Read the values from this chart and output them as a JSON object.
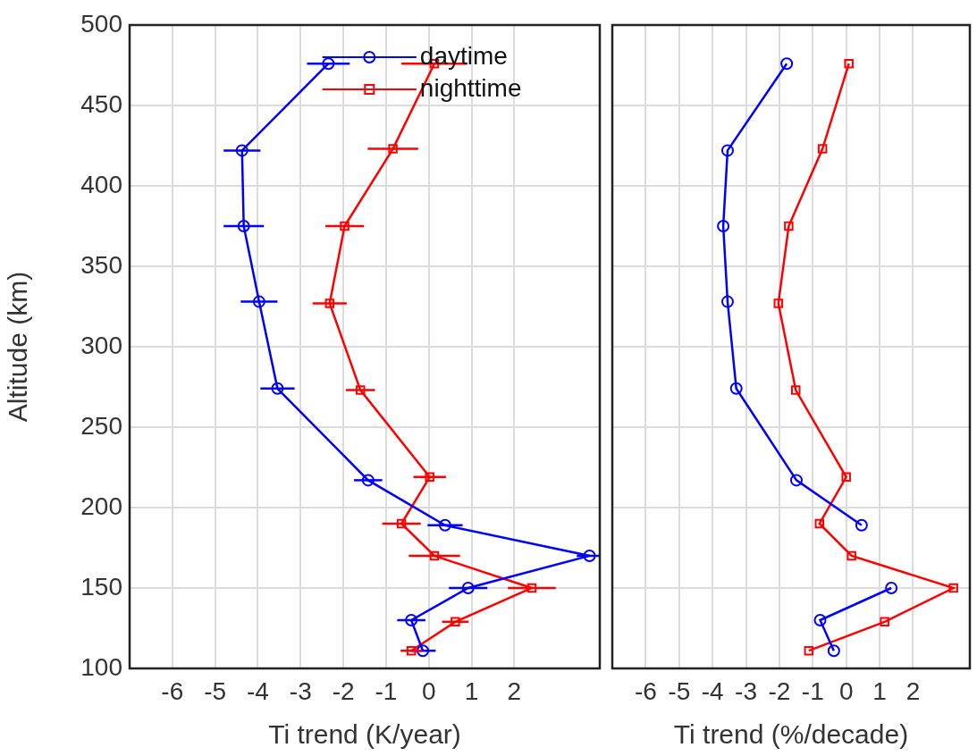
{
  "chart_data": [
    {
      "type": "line",
      "xlabel": "Ti trend (K/year)",
      "ylabel": "Altitude (km)",
      "xlim": [
        -7,
        4
      ],
      "xticks": [
        -6,
        -5,
        -4,
        -3,
        -2,
        -1,
        0,
        1,
        2
      ],
      "ylim": [
        100,
        500
      ],
      "yticks": [
        100,
        150,
        200,
        250,
        300,
        350,
        400,
        450,
        500
      ],
      "grid": true,
      "legend": "top right",
      "series": [
        {
          "name": "daytime",
          "color": "#0000ff",
          "marker": "circle",
          "x": [
            -2.35,
            -4.37,
            -4.33,
            -3.97,
            -3.54,
            -1.42,
            0.38,
            3.76,
            0.92,
            -0.41,
            -0.14
          ],
          "values": [
            476,
            422,
            375,
            328,
            274,
            217,
            189,
            170,
            150,
            130,
            111
          ],
          "xerrors": [
            0.5,
            0.43,
            0.47,
            0.43,
            0.4,
            0.33,
            0.41,
            0.3,
            0.45,
            0.33,
            0.3
          ]
        },
        {
          "name": "nighttime",
          "color": "#ff0000",
          "marker": "square",
          "x": [
            0.13,
            -0.84,
            -1.97,
            -2.32,
            -1.6,
            0.02,
            -0.64,
            0.13,
            2.41,
            0.62,
            -0.41
          ],
          "values": [
            476,
            423,
            375,
            327,
            273,
            219,
            190,
            170,
            150,
            129,
            111
          ],
          "xerrors": [
            0.77,
            0.59,
            0.45,
            0.4,
            0.34,
            0.38,
            0.45,
            0.6,
            0.56,
            0.31,
            0.25
          ]
        }
      ]
    },
    {
      "type": "line",
      "xlabel": "Ti trend (%/decade)",
      "xlim": [
        -7,
        3.7
      ],
      "xticks": [
        -6,
        -5,
        -4,
        -3,
        -2,
        -1,
        0,
        1,
        2
      ],
      "ylim": [
        100,
        500
      ],
      "yticks": [
        100,
        150,
        200,
        250,
        300,
        350,
        400,
        450,
        500
      ],
      "grid": true,
      "tick_labels": "x",
      "series": [
        {
          "color": "#0000ff",
          "marker": "circle",
          "x": [
            -1.78,
            -3.55,
            -3.68,
            -3.55,
            -3.29,
            -1.49,
            0.46,
            null,
            1.35,
            -0.78,
            -0.37
          ],
          "values": [
            476,
            422,
            375,
            328,
            274,
            217,
            189,
            null,
            150,
            130,
            111
          ]
        },
        {
          "color": "#ff0000",
          "marker": "square",
          "x": [
            0.08,
            -0.71,
            -1.72,
            -2.03,
            -1.51,
            0.0,
            -0.8,
            0.16,
            3.21,
            1.15,
            -1.12
          ],
          "values": [
            476,
            423,
            375,
            327,
            273,
            219,
            190,
            170,
            150,
            129,
            111
          ]
        }
      ]
    }
  ]
}
